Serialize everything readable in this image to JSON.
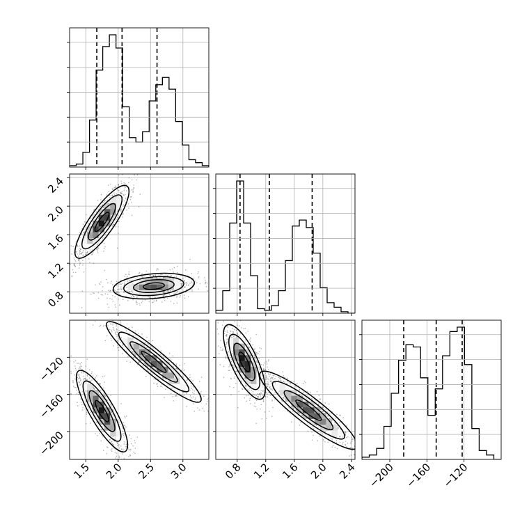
{
  "chart_data": {
    "type": "corner",
    "title": "",
    "grid": true,
    "parameters": [
      {
        "range": [
          1.25,
          3.4
        ],
        "ticks": [
          1.5,
          2.0,
          2.5,
          3.0
        ],
        "tick_labels": [
          "1.5",
          "2.0",
          "2.5",
          "3.0"
        ],
        "quantiles": [
          1.67,
          2.06,
          2.6
        ]
      },
      {
        "range": [
          0.5,
          2.45
        ],
        "ticks": [
          0.8,
          1.2,
          1.6,
          2.0,
          2.4
        ],
        "tick_labels": [
          "0.8",
          "1.2",
          "1.6",
          "2.0",
          "2.4"
        ],
        "quantiles": [
          0.84,
          1.25,
          1.85
        ]
      },
      {
        "range": [
          -230,
          -80
        ],
        "ticks": [
          -200,
          -160,
          -120
        ],
        "tick_labels": [
          "−200",
          "−160",
          "−120"
        ],
        "quantiles": [
          -185,
          -150,
          -122
        ]
      }
    ],
    "histograms": [
      {
        "counts": [
          1,
          2,
          10,
          32,
          66,
          82,
          90,
          81,
          41,
          20,
          17,
          24,
          45,
          56,
          61,
          53,
          31,
          15,
          5,
          3,
          1
        ]
      },
      {
        "counts": [
          2,
          15,
          60,
          88,
          60,
          25,
          3,
          2,
          5,
          15,
          35,
          58,
          62,
          57,
          40,
          17,
          7,
          4,
          1,
          0
        ]
      },
      {
        "counts": [
          1,
          2,
          5,
          15,
          30,
          45,
          52,
          51,
          37,
          20,
          32,
          47,
          58,
          60,
          43,
          14,
          4,
          2,
          0
        ]
      }
    ],
    "blobs": [
      {
        "panel": "1-0",
        "components": [
          {
            "center": [
              1.75,
              1.78
            ],
            "sigma_along": 0.3,
            "sigma_across": 0.085,
            "angle_deg": 55,
            "peak": 1.0
          },
          {
            "center": [
              2.55,
              0.88
            ],
            "sigma_along": 0.28,
            "sigma_across": 0.085,
            "angle_deg": 5,
            "peak": 0.85
          }
        ]
      },
      {
        "panel": "2-0",
        "components": [
          {
            "center": [
              1.75,
              -178
            ],
            "sigma_along": 0.32,
            "sigma_across": 0.085,
            "angle_deg": -60,
            "peak": 1.0
          },
          {
            "center": [
              2.55,
              -125
            ],
            "sigma_along": 0.42,
            "sigma_across": 0.08,
            "angle_deg": -40,
            "peak": 0.85
          }
        ]
      },
      {
        "panel": "2-1",
        "components": [
          {
            "center": [
              0.9,
              -125
            ],
            "sigma_along": 0.28,
            "sigma_across": 0.09,
            "angle_deg": -65,
            "peak": 1.0
          },
          {
            "center": [
              1.8,
              -177
            ],
            "sigma_along": 0.42,
            "sigma_across": 0.09,
            "angle_deg": -38,
            "peak": 0.85
          }
        ]
      }
    ]
  }
}
